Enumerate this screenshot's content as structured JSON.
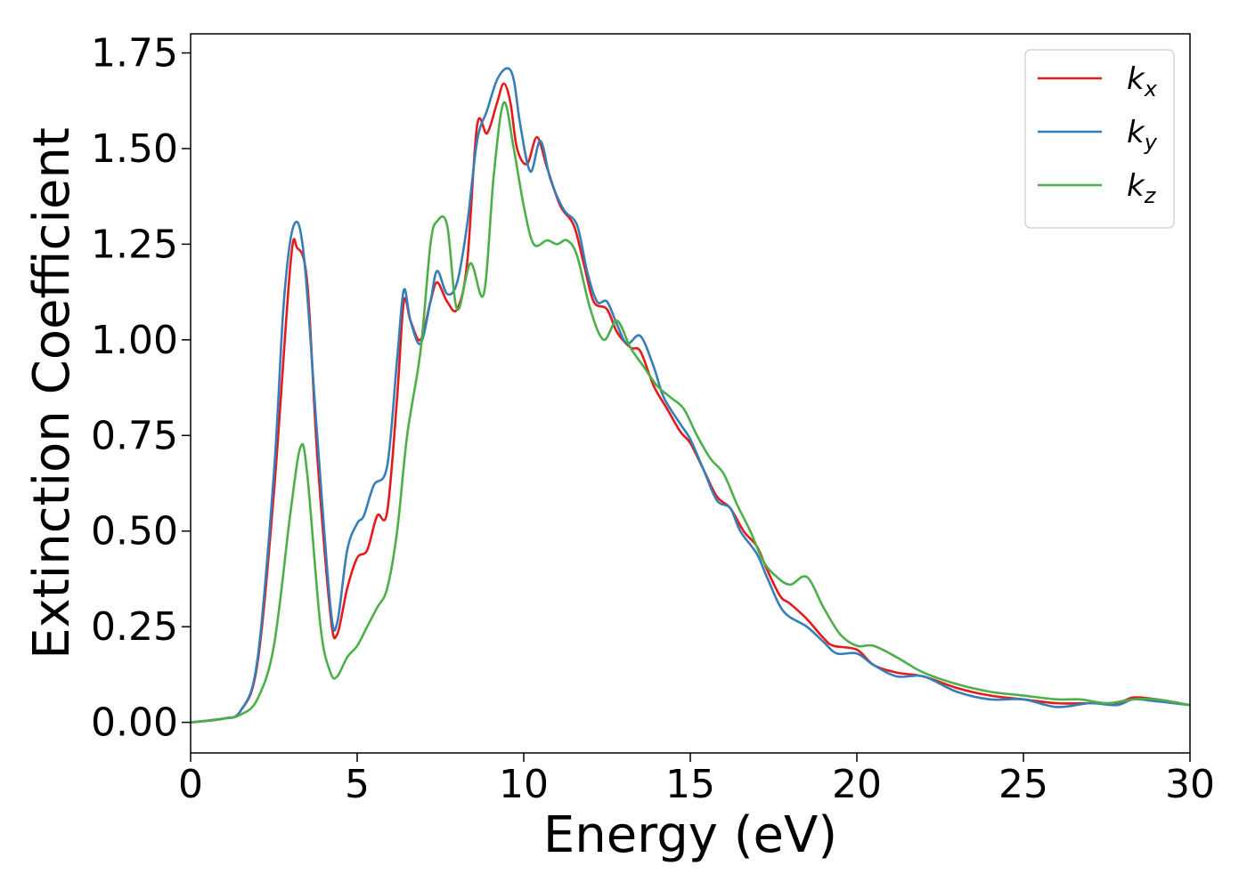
{
  "chart_data": {
    "type": "line",
    "xlabel": "Energy (eV)",
    "ylabel": "Extinction Coefficient",
    "xlim": [
      0,
      30
    ],
    "ylim": [
      -0.08,
      1.8
    ],
    "xticks": [
      0,
      5,
      10,
      15,
      20,
      25,
      30
    ],
    "xtick_labels": [
      "0",
      "5",
      "10",
      "15",
      "20",
      "25",
      "30"
    ],
    "yticks": [
      0.0,
      0.25,
      0.5,
      0.75,
      1.0,
      1.25,
      1.5,
      1.75
    ],
    "ytick_labels": [
      "0.00",
      "0.25",
      "0.50",
      "0.75",
      "1.00",
      "1.25",
      "1.50",
      "1.75"
    ],
    "grid": false,
    "legend_position": "top-right",
    "series": [
      {
        "name": "k",
        "subscript": "x",
        "color": "#e41a1c",
        "points": [
          [
            0,
            0
          ],
          [
            1,
            0.01
          ],
          [
            1.5,
            0.03
          ],
          [
            2,
            0.15
          ],
          [
            2.5,
            0.6
          ],
          [
            3,
            1.2
          ],
          [
            3.2,
            1.24
          ],
          [
            3.5,
            1.15
          ],
          [
            3.8,
            0.7
          ],
          [
            4.2,
            0.28
          ],
          [
            4.4,
            0.23
          ],
          [
            4.7,
            0.35
          ],
          [
            5,
            0.43
          ],
          [
            5.3,
            0.45
          ],
          [
            5.6,
            0.54
          ],
          [
            5.9,
            0.55
          ],
          [
            6.2,
            0.85
          ],
          [
            6.4,
            1.1
          ],
          [
            6.6,
            1.05
          ],
          [
            6.9,
            1.0
          ],
          [
            7.2,
            1.1
          ],
          [
            7.4,
            1.15
          ],
          [
            7.7,
            1.1
          ],
          [
            8,
            1.08
          ],
          [
            8.3,
            1.2
          ],
          [
            8.6,
            1.56
          ],
          [
            8.9,
            1.54
          ],
          [
            9.2,
            1.62
          ],
          [
            9.4,
            1.67
          ],
          [
            9.6,
            1.62
          ],
          [
            9.8,
            1.5
          ],
          [
            10.1,
            1.46
          ],
          [
            10.4,
            1.53
          ],
          [
            10.7,
            1.45
          ],
          [
            11.1,
            1.35
          ],
          [
            11.5,
            1.3
          ],
          [
            11.8,
            1.2
          ],
          [
            12.1,
            1.1
          ],
          [
            12.5,
            1.08
          ],
          [
            12.8,
            1.02
          ],
          [
            13.2,
            0.98
          ],
          [
            13.5,
            0.97
          ],
          [
            13.9,
            0.88
          ],
          [
            14.3,
            0.82
          ],
          [
            14.7,
            0.76
          ],
          [
            15,
            0.73
          ],
          [
            15.4,
            0.66
          ],
          [
            15.8,
            0.59
          ],
          [
            16.2,
            0.56
          ],
          [
            16.6,
            0.5
          ],
          [
            17,
            0.46
          ],
          [
            17.3,
            0.4
          ],
          [
            17.7,
            0.33
          ],
          [
            18,
            0.31
          ],
          [
            18.5,
            0.27
          ],
          [
            19,
            0.22
          ],
          [
            19.3,
            0.2
          ],
          [
            20,
            0.19
          ],
          [
            20.5,
            0.15
          ],
          [
            21.2,
            0.13
          ],
          [
            22,
            0.12
          ],
          [
            23,
            0.09
          ],
          [
            24,
            0.07
          ],
          [
            25,
            0.06
          ],
          [
            26,
            0.05
          ],
          [
            27,
            0.05
          ],
          [
            27.8,
            0.05
          ],
          [
            28.3,
            0.065
          ],
          [
            29,
            0.06
          ],
          [
            30,
            0.045
          ]
        ]
      },
      {
        "name": "k",
        "subscript": "y",
        "color": "#377eb8",
        "points": [
          [
            0,
            0
          ],
          [
            1,
            0.01
          ],
          [
            1.5,
            0.03
          ],
          [
            2,
            0.16
          ],
          [
            2.5,
            0.65
          ],
          [
            2.8,
            1.1
          ],
          [
            3.1,
            1.3
          ],
          [
            3.4,
            1.22
          ],
          [
            3.8,
            0.75
          ],
          [
            4.2,
            0.3
          ],
          [
            4.4,
            0.26
          ],
          [
            4.7,
            0.45
          ],
          [
            5,
            0.52
          ],
          [
            5.2,
            0.54
          ],
          [
            5.5,
            0.62
          ],
          [
            5.9,
            0.67
          ],
          [
            6.2,
            0.95
          ],
          [
            6.4,
            1.13
          ],
          [
            6.6,
            1.05
          ],
          [
            6.9,
            0.99
          ],
          [
            7.2,
            1.1
          ],
          [
            7.4,
            1.18
          ],
          [
            7.7,
            1.12
          ],
          [
            8,
            1.15
          ],
          [
            8.3,
            1.3
          ],
          [
            8.6,
            1.52
          ],
          [
            8.9,
            1.6
          ],
          [
            9.2,
            1.68
          ],
          [
            9.5,
            1.71
          ],
          [
            9.7,
            1.68
          ],
          [
            9.9,
            1.56
          ],
          [
            10.2,
            1.44
          ],
          [
            10.5,
            1.52
          ],
          [
            10.8,
            1.42
          ],
          [
            11.2,
            1.34
          ],
          [
            11.6,
            1.3
          ],
          [
            11.9,
            1.18
          ],
          [
            12.2,
            1.1
          ],
          [
            12.5,
            1.1
          ],
          [
            12.8,
            1.04
          ],
          [
            13.1,
            0.99
          ],
          [
            13.5,
            1.01
          ],
          [
            13.9,
            0.93
          ],
          [
            14.2,
            0.85
          ],
          [
            14.7,
            0.78
          ],
          [
            15,
            0.74
          ],
          [
            15.4,
            0.66
          ],
          [
            15.8,
            0.58
          ],
          [
            16.2,
            0.56
          ],
          [
            16.5,
            0.5
          ],
          [
            17,
            0.44
          ],
          [
            17.3,
            0.38
          ],
          [
            17.8,
            0.29
          ],
          [
            18.5,
            0.25
          ],
          [
            19,
            0.21
          ],
          [
            19.4,
            0.18
          ],
          [
            20,
            0.18
          ],
          [
            20.5,
            0.15
          ],
          [
            21.2,
            0.12
          ],
          [
            22,
            0.12
          ],
          [
            23,
            0.08
          ],
          [
            24,
            0.06
          ],
          [
            25,
            0.06
          ],
          [
            26,
            0.04
          ],
          [
            27,
            0.05
          ],
          [
            27.8,
            0.045
          ],
          [
            28.3,
            0.06
          ],
          [
            29,
            0.055
          ],
          [
            30,
            0.045
          ]
        ]
      },
      {
        "name": "k",
        "subscript": "z",
        "color": "#4daf4a",
        "points": [
          [
            0,
            0
          ],
          [
            1,
            0.01
          ],
          [
            1.5,
            0.02
          ],
          [
            2,
            0.06
          ],
          [
            2.5,
            0.2
          ],
          [
            3,
            0.55
          ],
          [
            3.3,
            0.72
          ],
          [
            3.5,
            0.65
          ],
          [
            3.9,
            0.25
          ],
          [
            4.2,
            0.13
          ],
          [
            4.4,
            0.12
          ],
          [
            4.7,
            0.17
          ],
          [
            5,
            0.2
          ],
          [
            5.3,
            0.25
          ],
          [
            5.6,
            0.3
          ],
          [
            5.9,
            0.35
          ],
          [
            6.2,
            0.5
          ],
          [
            6.5,
            0.75
          ],
          [
            6.9,
            0.97
          ],
          [
            7.2,
            1.25
          ],
          [
            7.4,
            1.31
          ],
          [
            7.7,
            1.3
          ],
          [
            8,
            1.08
          ],
          [
            8.4,
            1.2
          ],
          [
            8.8,
            1.12
          ],
          [
            9.1,
            1.43
          ],
          [
            9.4,
            1.62
          ],
          [
            9.7,
            1.5
          ],
          [
            10,
            1.35
          ],
          [
            10.3,
            1.25
          ],
          [
            10.7,
            1.26
          ],
          [
            11,
            1.25
          ],
          [
            11.3,
            1.26
          ],
          [
            11.6,
            1.22
          ],
          [
            12,
            1.08
          ],
          [
            12.4,
            1.0
          ],
          [
            12.8,
            1.05
          ],
          [
            13.2,
            0.98
          ],
          [
            13.6,
            0.93
          ],
          [
            14,
            0.88
          ],
          [
            14.4,
            0.85
          ],
          [
            14.8,
            0.82
          ],
          [
            15.2,
            0.75
          ],
          [
            15.6,
            0.69
          ],
          [
            16,
            0.65
          ],
          [
            16.4,
            0.57
          ],
          [
            16.8,
            0.5
          ],
          [
            17.2,
            0.42
          ],
          [
            17.6,
            0.38
          ],
          [
            18,
            0.36
          ],
          [
            18.5,
            0.38
          ],
          [
            19,
            0.3
          ],
          [
            19.5,
            0.23
          ],
          [
            20,
            0.2
          ],
          [
            20.5,
            0.2
          ],
          [
            21.2,
            0.17
          ],
          [
            22,
            0.13
          ],
          [
            23,
            0.1
          ],
          [
            24,
            0.08
          ],
          [
            25,
            0.07
          ],
          [
            26,
            0.06
          ],
          [
            26.7,
            0.06
          ],
          [
            27.5,
            0.05
          ],
          [
            28.3,
            0.06
          ],
          [
            29,
            0.06
          ],
          [
            30,
            0.045
          ]
        ]
      }
    ]
  }
}
